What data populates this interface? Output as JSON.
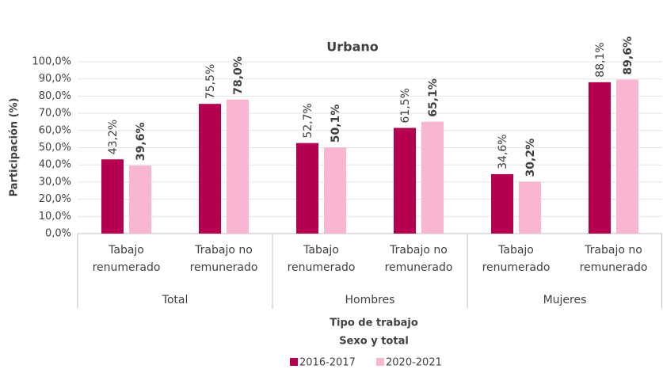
{
  "chart_data": {
    "type": "bar",
    "title": "Urbano",
    "ylabel": "Participación (%)",
    "xlabels": [
      "Tipo de trabajo",
      "Sexo y total"
    ],
    "groups": [
      "Total",
      "Hombres",
      "Mujeres"
    ],
    "categories": [
      "Tabajo renumerado",
      "Trabajo no remunerado",
      "Tabajo renumerado",
      "Trabajo no remunerado",
      "Tabajo renumerado",
      "Trabajo no remunerado"
    ],
    "series": [
      {
        "name": "2016-2017",
        "color": "#b5004f",
        "values": [
          43.2,
          75.5,
          52.7,
          61.5,
          34.6,
          88.1
        ],
        "value_labels": [
          "43,2%",
          "75,5%",
          "52,7%",
          "61,5%",
          "34,6%",
          "88,1%"
        ]
      },
      {
        "name": "2020-2021",
        "color": "#f8b6d2",
        "values": [
          39.6,
          78.0,
          50.1,
          65.1,
          30.2,
          89.6
        ],
        "value_labels": [
          "39,6%",
          "78,0%",
          "50,1%",
          "65,1%",
          "30,2%",
          "89,6%"
        ]
      }
    ],
    "ylim": [
      0,
      100
    ],
    "yticks": [
      {
        "value": 0,
        "label": "0,0%"
      },
      {
        "value": 10,
        "label": "10,0%"
      },
      {
        "value": 20,
        "label": "20,0%"
      },
      {
        "value": 30,
        "label": "30,0%"
      },
      {
        "value": 40,
        "label": "40,0%"
      },
      {
        "value": 50,
        "label": "50,0%"
      },
      {
        "value": 60,
        "label": "60,0%"
      },
      {
        "value": 70,
        "label": "70,0%"
      },
      {
        "value": 80,
        "label": "80,0%"
      },
      {
        "value": 90,
        "label": "90,0%"
      },
      {
        "value": 100,
        "label": "100,0%"
      }
    ],
    "grid": true,
    "legend": "bottom"
  }
}
